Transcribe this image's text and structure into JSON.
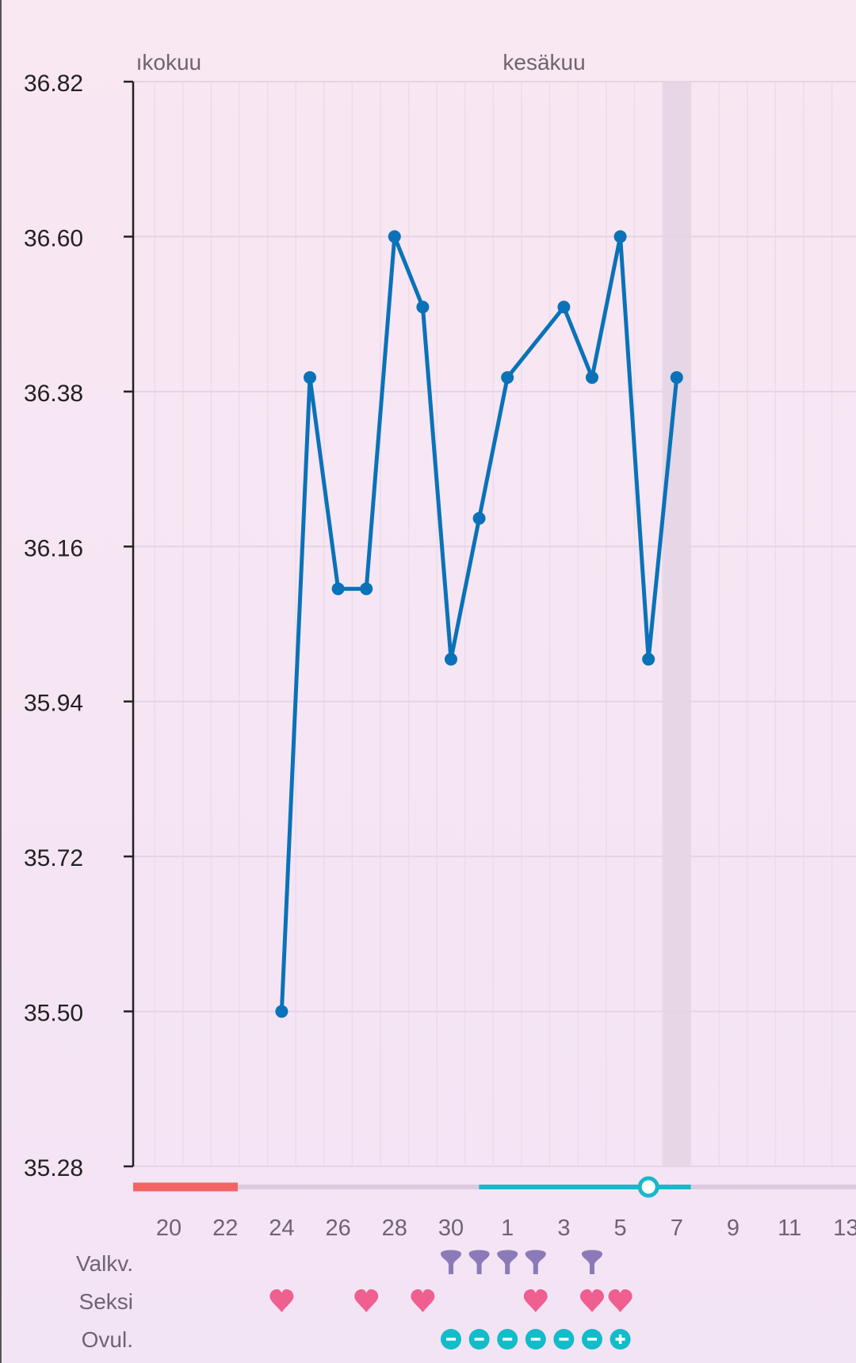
{
  "chart_data": {
    "type": "line",
    "months": [
      {
        "label": "ıkokuu",
        "start_day_index": -1
      },
      {
        "label": "kesäkuu",
        "start_day_index": 12
      }
    ],
    "dates": [
      "May 20",
      "May 21",
      "May 22",
      "May 23",
      "May 24",
      "May 25",
      "May 26",
      "May 27",
      "May 28",
      "May 29",
      "May 30",
      "May 31",
      "Jun 1",
      "Jun 2",
      "Jun 3",
      "Jun 4",
      "Jun 5",
      "Jun 6",
      "Jun 7",
      "Jun 8",
      "Jun 9",
      "Jun 10",
      "Jun 11",
      "Jun 12",
      "Jun 13"
    ],
    "x_tick_labels": [
      "20",
      "22",
      "24",
      "26",
      "28",
      "30",
      "1",
      "3",
      "5",
      "7",
      "9",
      "11",
      "13"
    ],
    "y_ticks": [
      "36.82",
      "36.60",
      "36.38",
      "36.16",
      "35.94",
      "35.72",
      "35.50",
      "35.28"
    ],
    "ylim": [
      35.28,
      36.82
    ],
    "grid": true,
    "series": [
      {
        "color": "#0a72b8",
        "points": [
          {
            "date": "May 24",
            "day_index": 4,
            "value": 35.5
          },
          {
            "date": "May 25",
            "day_index": 5,
            "value": 36.4
          },
          {
            "date": "May 26",
            "day_index": 6,
            "value": 36.1
          },
          {
            "date": "May 27",
            "day_index": 7,
            "value": 36.1
          },
          {
            "date": "May 28",
            "day_index": 8,
            "value": 36.6
          },
          {
            "date": "May 29",
            "day_index": 9,
            "value": 36.5
          },
          {
            "date": "May 30",
            "day_index": 10,
            "value": 36.0
          },
          {
            "date": "May 31",
            "day_index": 11,
            "value": 36.2
          },
          {
            "date": "Jun 1",
            "day_index": 12,
            "value": 36.4
          },
          {
            "date": "Jun 3",
            "day_index": 14,
            "value": 36.5
          },
          {
            "date": "Jun 4",
            "day_index": 15,
            "value": 36.4
          },
          {
            "date": "Jun 5",
            "day_index": 16,
            "value": 36.6
          },
          {
            "date": "Jun 6",
            "day_index": 17,
            "value": 36.0
          },
          {
            "date": "Jun 7",
            "day_index": 18,
            "value": 36.4
          }
        ]
      }
    ],
    "highlighted_day_index": 18,
    "cycle_bar": {
      "period": {
        "from_day_index": -1,
        "to_day_index": 2,
        "color": "#f26464"
      },
      "fertile": {
        "from_day_index": 11,
        "to_day_index": 18,
        "color": "#16b9c9"
      },
      "ovulation_marker_day_index": 17,
      "track_color": "#dccbe0"
    },
    "rows": [
      {
        "label": "Valkv.",
        "icon": "cervical-fluid-icon",
        "color": "#8a7bb8",
        "day_indices": [
          10,
          11,
          12,
          13,
          15
        ]
      },
      {
        "label": "Seksi",
        "icon": "heart-icon",
        "color": "#ef5f8f",
        "day_indices": [
          4,
          7,
          9,
          13,
          15,
          16
        ]
      },
      {
        "label": "Ovul.",
        "icon": "ovulation-test-icon",
        "color": "#12bcc8",
        "day_indices": [
          10,
          11,
          12,
          13,
          14,
          15,
          16
        ],
        "results": [
          "-",
          "-",
          "-",
          "-",
          "-",
          "-",
          "+"
        ]
      }
    ]
  }
}
